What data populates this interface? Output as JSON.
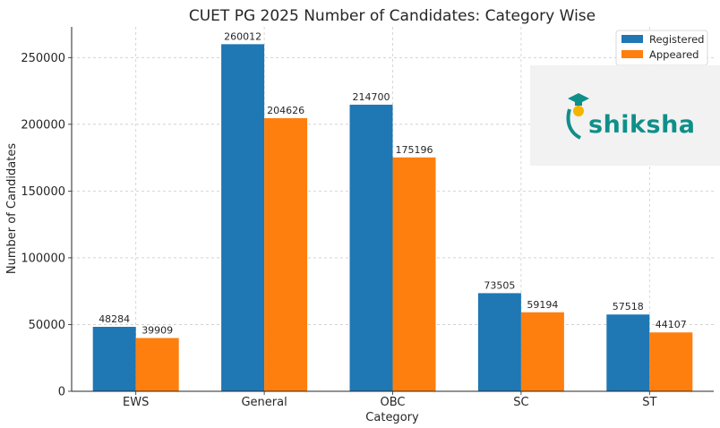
{
  "chart_data": {
    "type": "bar",
    "title": "CUET PG 2025 Number of Candidates: Category Wise",
    "xlabel": "Category",
    "ylabel": "Number of Candidates",
    "categories": [
      "EWS",
      "General",
      "OBC",
      "SC",
      "ST"
    ],
    "series": [
      {
        "name": "Registered",
        "color": "#1f77b4",
        "values": [
          48284,
          260012,
          214700,
          73505,
          57518
        ]
      },
      {
        "name": "Appeared",
        "color": "#ff7f0e",
        "values": [
          39909,
          204626,
          175196,
          59194,
          44107
        ]
      }
    ],
    "ylim": [
      0,
      273000
    ],
    "yticks": [
      0,
      50000,
      100000,
      150000,
      200000,
      250000
    ],
    "grid": true,
    "legend_position": "top-right"
  },
  "watermark": {
    "text": "shiksha",
    "icon": "graduate-cap-logo"
  }
}
